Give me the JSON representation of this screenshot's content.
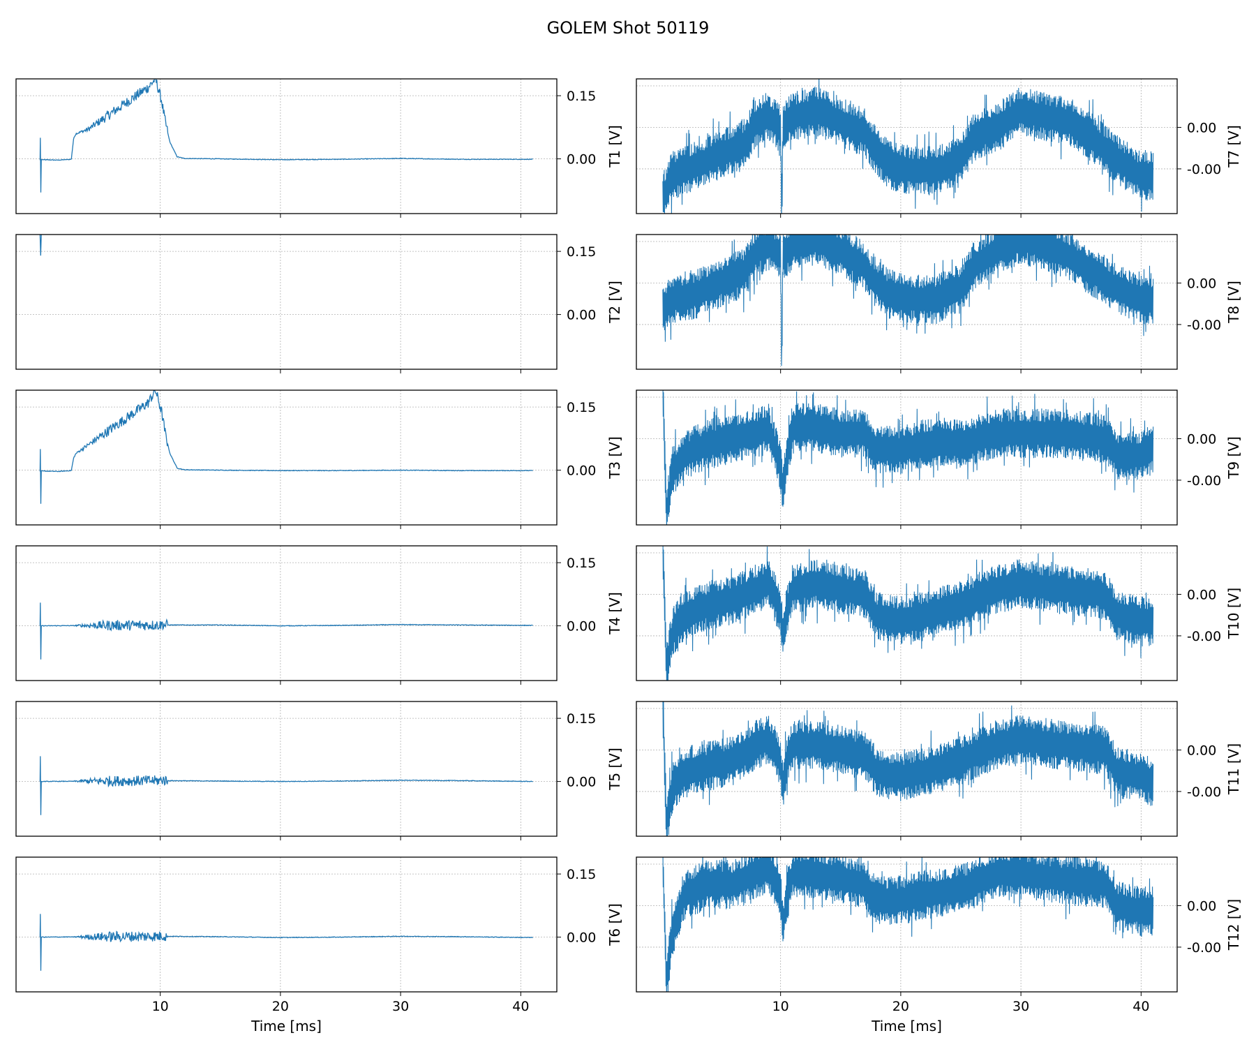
{
  "figure": {
    "title": "GOLEM Shot 50119"
  },
  "colors": {
    "trace": "#1f77b4",
    "grid": "#b0b0b0",
    "axes": "#000000"
  },
  "chart_data": [
    {
      "type": "line",
      "ylabel": "T1 [V]",
      "yticks": [
        "0.15",
        "0.00"
      ],
      "xticks": [],
      "xlabel": "",
      "grid": true,
      "xlim": [
        -2,
        43
      ],
      "ylim": [
        -0.13,
        0.19
      ],
      "x": [
        0,
        0.02,
        0.06,
        0.1,
        1.5,
        2.6,
        2.8,
        3,
        4,
        5,
        6,
        7,
        8,
        9,
        9.6,
        10.1,
        10.4,
        10.8,
        11.4,
        12,
        15,
        20,
        25,
        30,
        35,
        40,
        41
      ],
      "y": [
        -0.003,
        0.05,
        -0.08,
        -0.002,
        -0.003,
        -0.001,
        0.05,
        0.06,
        0.07,
        0.09,
        0.11,
        0.13,
        0.15,
        0.17,
        0.19,
        0.14,
        0.09,
        0.04,
        0.005,
        0.001,
        0.0,
        -0.002,
        -0.001,
        0.001,
        -0.001,
        -0.001,
        -0.001
      ]
    },
    {
      "type": "line",
      "ylabel": "T2 [V]",
      "yticks": [
        "0.15",
        "0.00"
      ],
      "xticks": [],
      "xlabel": "",
      "grid": true,
      "xlim": [
        -2,
        43
      ],
      "ylim": [
        -0.13,
        0.19
      ],
      "x": [
        0,
        0.05,
        0.1
      ],
      "y": [
        0.19,
        0.14,
        0.19
      ]
    },
    {
      "type": "line",
      "ylabel": "T3 [V]",
      "yticks": [
        "0.15",
        "0.00"
      ],
      "xticks": [],
      "xlabel": "",
      "grid": true,
      "xlim": [
        -2,
        43
      ],
      "ylim": [
        -0.13,
        0.19
      ],
      "x": [
        0,
        0.02,
        0.06,
        0.1,
        1.5,
        2.6,
        2.8,
        3,
        4,
        5,
        6,
        7,
        8,
        9,
        9.6,
        10.1,
        10.4,
        10.8,
        11.4,
        12,
        15,
        20,
        25,
        30,
        35,
        40,
        41
      ],
      "y": [
        -0.003,
        0.05,
        -0.08,
        -0.002,
        -0.003,
        -0.001,
        0.03,
        0.04,
        0.06,
        0.08,
        0.1,
        0.12,
        0.14,
        0.16,
        0.19,
        0.14,
        0.09,
        0.04,
        0.005,
        0.001,
        0.0,
        -0.001,
        -0.001,
        0.0,
        -0.001,
        -0.001,
        -0.001
      ]
    },
    {
      "type": "line",
      "ylabel": "T4 [V]",
      "yticks": [
        "0.15",
        "0.00"
      ],
      "xticks": [],
      "xlabel": "",
      "grid": true,
      "xlim": [
        -2,
        43
      ],
      "ylim": [
        -0.13,
        0.19
      ],
      "x": [
        0,
        0.02,
        0.06,
        0.1,
        5,
        10,
        10.2,
        10.4,
        15,
        20,
        25,
        30,
        35,
        41
      ],
      "y": [
        0.0,
        0.055,
        -0.08,
        0.0,
        0.001,
        0.002,
        0.004,
        0.002,
        0.002,
        0.0,
        0.001,
        0.003,
        0.002,
        0.001
      ]
    },
    {
      "type": "line",
      "ylabel": "T5 [V]",
      "yticks": [
        "0.15",
        "0.00"
      ],
      "xticks": [],
      "xlabel": "",
      "grid": true,
      "xlim": [
        -2,
        43
      ],
      "ylim": [
        -0.13,
        0.19
      ],
      "x": [
        0,
        0.02,
        0.06,
        0.1,
        5,
        10,
        10.2,
        10.4,
        15,
        20,
        25,
        30,
        35,
        41
      ],
      "y": [
        0.0,
        0.06,
        -0.08,
        0.0,
        0.001,
        0.002,
        0.005,
        0.002,
        0.001,
        0.0,
        0.001,
        0.003,
        0.002,
        0.0
      ]
    },
    {
      "type": "line",
      "ylabel": "T6 [V]",
      "yticks": [
        "0.15",
        "0.00"
      ],
      "xticks": [
        "10",
        "20",
        "30",
        "40"
      ],
      "xlabel": "Time [ms]",
      "grid": true,
      "xlim": [
        -2,
        43
      ],
      "ylim": [
        -0.13,
        0.19
      ],
      "x": [
        0,
        0.02,
        0.06,
        0.1,
        5,
        10,
        10.2,
        10.4,
        15,
        20,
        25,
        30,
        35,
        41
      ],
      "y": [
        0.0,
        0.055,
        -0.08,
        0.0,
        0.001,
        0.002,
        0.004,
        0.002,
        0.001,
        -0.001,
        0.0,
        0.002,
        0.001,
        -0.001
      ]
    },
    {
      "type": "line",
      "ylabel": "T7 [V]",
      "yticks": [
        "0.00",
        "-0.00"
      ],
      "xticks": [],
      "xlabel": "",
      "grid": true,
      "xlim": [
        -2,
        43
      ],
      "ylim": [
        -0.0016,
        0.0009
      ],
      "x": [
        0.2,
        1,
        3,
        5,
        7,
        8,
        9,
        10,
        10.1,
        10.2,
        11,
        13,
        15,
        17,
        17.5,
        19,
        21,
        23,
        25,
        26,
        28,
        30,
        32,
        34,
        36,
        38,
        40,
        41
      ],
      "y": [
        -0.0013,
        -0.0009,
        -0.0007,
        -0.0005,
        -0.0003,
        0.0001,
        0.0002,
        0.0,
        -0.0017,
        0.0,
        0.0002,
        0.0003,
        0.0001,
        -0.0001,
        -0.0003,
        -0.0007,
        -0.0008,
        -0.0008,
        -0.0006,
        -0.0002,
        0.0,
        0.0003,
        0.0002,
        0.0001,
        -0.0002,
        -0.0006,
        -0.0009,
        -0.0009
      ]
    },
    {
      "type": "line",
      "ylabel": "T8 [V]",
      "yticks": [
        "0.00",
        "-0.00"
      ],
      "xticks": [],
      "xlabel": "",
      "grid": true,
      "xlim": [
        -2,
        43
      ],
      "ylim": [
        -0.0016,
        0.0009
      ],
      "x": [
        0.2,
        1,
        3,
        5,
        7,
        8,
        9,
        10,
        10.1,
        10.2,
        11,
        13,
        15,
        17,
        17.5,
        19,
        21,
        23,
        25,
        26,
        28,
        30,
        32,
        34,
        36,
        38,
        40,
        41
      ],
      "y": [
        -0.0005,
        -0.0003,
        -0.0002,
        0.0,
        0.0002,
        0.0006,
        0.0007,
        0.0005,
        -0.0016,
        0.0005,
        0.0007,
        0.0008,
        0.0006,
        0.0003,
        0.0001,
        -0.0002,
        -0.0003,
        -0.0003,
        -0.0001,
        0.0003,
        0.0006,
        0.0008,
        0.0007,
        0.0005,
        0.0002,
        -0.0001,
        -0.0003,
        -0.0003
      ]
    },
    {
      "type": "line",
      "ylabel": "T9 [V]",
      "yticks": [
        "0.00",
        "-0.00"
      ],
      "xticks": [],
      "xlabel": "",
      "grid": true,
      "xlim": [
        -2,
        43
      ],
      "ylim": [
        -0.0016,
        0.0009
      ],
      "x": [
        0.2,
        0.5,
        1,
        2,
        4,
        6,
        8,
        9,
        10,
        10.2,
        10.5,
        11,
        13,
        15,
        17,
        18,
        20,
        22,
        25,
        28,
        30,
        33,
        37,
        38,
        40,
        41
      ],
      "y": [
        0.0009,
        -0.0014,
        -0.0006,
        -0.0003,
        -0.0001,
        0.0,
        0.0001,
        0.0002,
        -0.0005,
        -0.001,
        -0.0004,
        0.0002,
        0.0002,
        0.0001,
        0.0001,
        -0.0002,
        -0.0002,
        -0.0001,
        -0.0001,
        0.0001,
        0.0001,
        0.0001,
        0.0,
        -0.0003,
        -0.0003,
        -0.0002
      ]
    },
    {
      "type": "line",
      "ylabel": "T10 [V]",
      "yticks": [
        "0.00",
        "-0.00"
      ],
      "xticks": [],
      "xlabel": "",
      "grid": true,
      "xlim": [
        -2,
        43
      ],
      "ylim": [
        -0.0016,
        0.0009
      ],
      "x": [
        0.2,
        0.5,
        1,
        2,
        4,
        6,
        8,
        9,
        10,
        10.2,
        10.5,
        11,
        13,
        15,
        17,
        18,
        20,
        22,
        25,
        28,
        30,
        33,
        37,
        38,
        40,
        41
      ],
      "y": [
        0.0009,
        -0.0014,
        -0.0007,
        -0.0004,
        -0.0002,
        -0.0001,
        0.0001,
        0.0002,
        -0.0003,
        -0.0008,
        -0.0003,
        0.0001,
        0.0002,
        0.0001,
        0.0,
        -0.0004,
        -0.0005,
        -0.0004,
        -0.0002,
        0.0001,
        0.0002,
        0.0001,
        0.0,
        -0.0004,
        -0.0005,
        -0.0005
      ]
    },
    {
      "type": "line",
      "ylabel": "T11 [V]",
      "yticks": [
        "0.00",
        "-0.00"
      ],
      "xticks": [],
      "xlabel": "",
      "grid": true,
      "xlim": [
        -2,
        43
      ],
      "ylim": [
        -0.0016,
        0.0009
      ],
      "x": [
        0.2,
        0.5,
        1,
        2,
        4,
        6,
        8,
        9,
        10,
        10.2,
        10.5,
        11,
        13,
        15,
        17,
        18,
        20,
        22,
        25,
        28,
        30,
        33,
        37,
        38,
        40,
        41
      ],
      "y": [
        0.0009,
        -0.0014,
        -0.0007,
        -0.0004,
        -0.0003,
        -0.0002,
        0.0001,
        0.0002,
        -0.0002,
        -0.0007,
        -0.0002,
        0.0001,
        0.0001,
        0.0,
        -0.0001,
        -0.0004,
        -0.0005,
        -0.0004,
        -0.0002,
        0.0001,
        0.0002,
        0.0001,
        0.0,
        -0.0004,
        -0.0005,
        -0.0006
      ]
    },
    {
      "type": "line",
      "ylabel": "T12 [V]",
      "yticks": [
        "0.00",
        "-0.00"
      ],
      "xticks": [
        "10",
        "20",
        "30",
        "40"
      ],
      "xlabel": "Time [ms]",
      "grid": true,
      "xlim": [
        -2,
        43
      ],
      "ylim": [
        -0.0016,
        0.0009
      ],
      "x": [
        0.2,
        0.5,
        1,
        2,
        4,
        6,
        8,
        9,
        10,
        10.2,
        10.5,
        11,
        13,
        15,
        17,
        18,
        20,
        22,
        25,
        28,
        30,
        33,
        37,
        38,
        40,
        41
      ],
      "y": [
        0.0009,
        -0.0014,
        -0.0005,
        0.0002,
        0.0004,
        0.0004,
        0.0006,
        0.0007,
        0.0002,
        -0.0004,
        0.0001,
        0.0006,
        0.0006,
        0.0005,
        0.0004,
        0.0001,
        0.0001,
        0.0002,
        0.0003,
        0.0006,
        0.0006,
        0.0005,
        0.0004,
        0.0,
        -0.0001,
        -0.0001
      ]
    }
  ]
}
